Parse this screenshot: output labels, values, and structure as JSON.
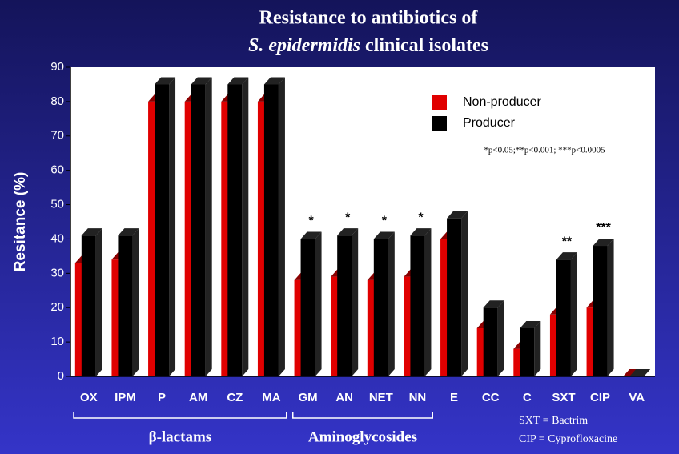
{
  "chart_data": {
    "type": "bar",
    "title_line1": "Resistance to antibiotics of",
    "title_italic": "S. epidermidis",
    "title_rest": " clinical isolates",
    "y_label": "Resitance (%)",
    "categories": [
      "OX",
      "IPM",
      "P",
      "AM",
      "CZ",
      "MA",
      "GM",
      "AN",
      "NET",
      "NN",
      "E",
      "CC",
      "C",
      "SXT",
      "CIP",
      "VA"
    ],
    "series": [
      {
        "name": "Non-producer",
        "color": "#e00000",
        "values": [
          33,
          34,
          80,
          80,
          80,
          80,
          28,
          29,
          28,
          29,
          40,
          14,
          8,
          18,
          20,
          0
        ]
      },
      {
        "name": "Producer",
        "color": "#000000",
        "values": [
          41,
          41,
          85,
          85,
          85,
          85,
          40,
          41,
          40,
          41,
          46,
          20,
          14,
          34,
          38,
          0
        ]
      }
    ],
    "significance": [
      null,
      null,
      null,
      null,
      null,
      null,
      "*",
      "*",
      "*",
      "*",
      null,
      null,
      null,
      "**",
      "***",
      null
    ],
    "p_note": "*p<0.05;**p<0.001; ***p<0.0005",
    "groups": [
      {
        "label": "β-lactams",
        "from": "OX",
        "to": "MA"
      },
      {
        "label": "Aminoglycosides",
        "from": "GM",
        "to": "NN"
      }
    ],
    "notes": [
      "SXT = Bactrim",
      "CIP = Cyprofloxacine"
    ],
    "ylim": [
      0,
      90
    ],
    "yticks": [
      0,
      10,
      20,
      30,
      40,
      50,
      60,
      70,
      80,
      90
    ]
  }
}
